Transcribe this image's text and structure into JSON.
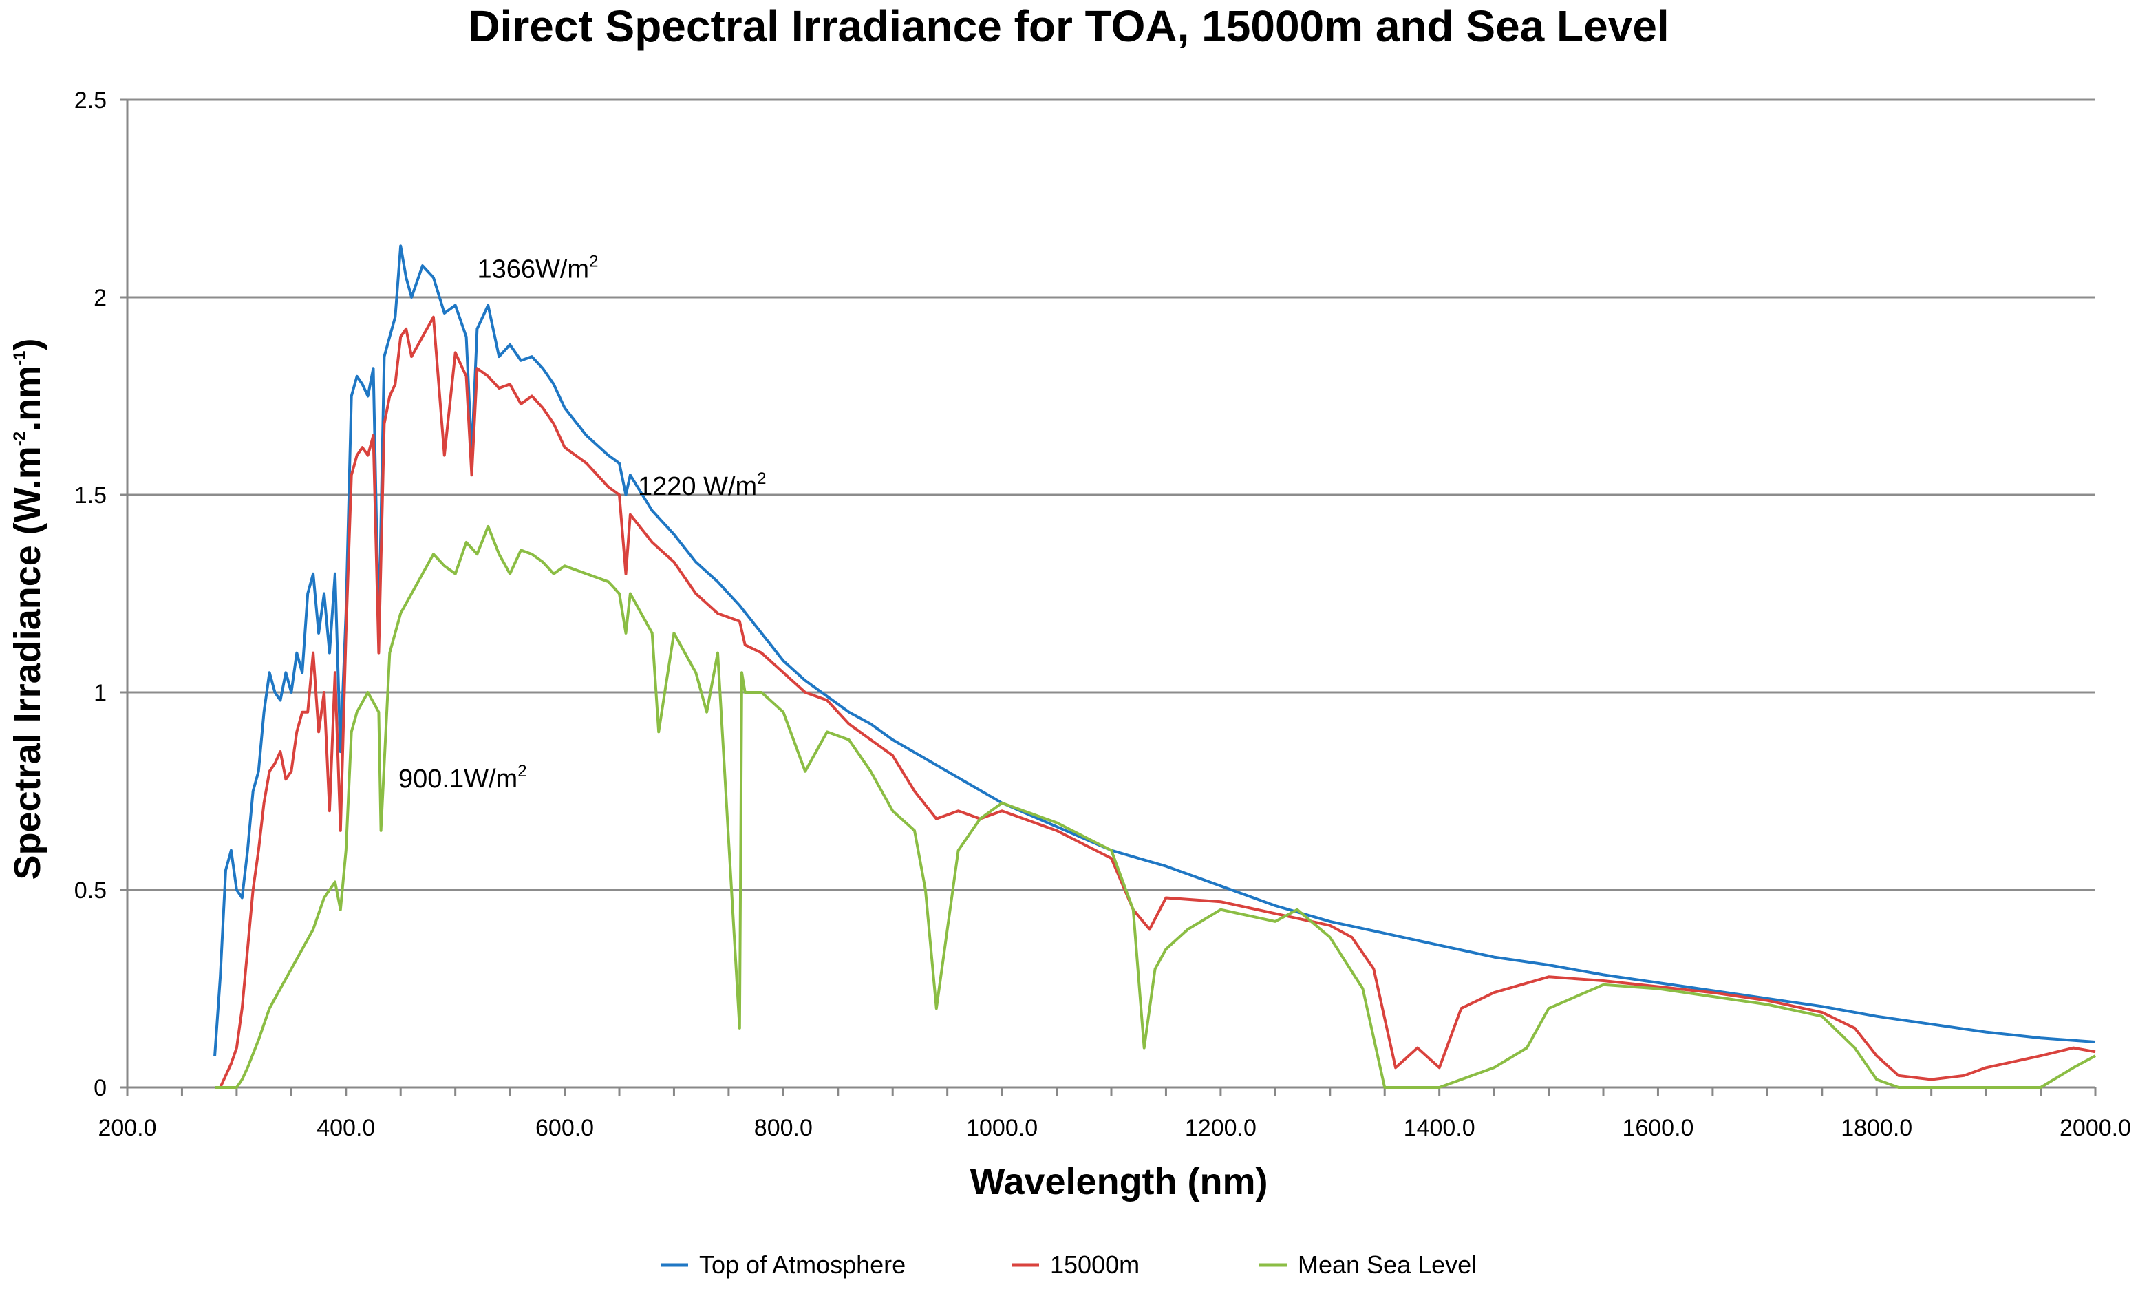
{
  "chart_data": {
    "type": "line",
    "title": "Direct Spectral Irradiance for TOA, 15000m and Sea Level",
    "xlabel": "Wavelength (nm)",
    "ylabel": {
      "base": "Spectral Irradiance (W.m",
      "sup1": "-2",
      "mid": ".nm",
      "sup2": "-1",
      "end": ")"
    },
    "xlim": [
      200,
      2000
    ],
    "ylim": [
      0,
      2.5
    ],
    "x_ticks": [
      "200.0",
      "400.0",
      "600.0",
      "800.0",
      "1000.0",
      "1200.0",
      "1400.0",
      "1600.0",
      "1800.0",
      "2000.0"
    ],
    "x_tick_values": [
      200,
      400,
      600,
      800,
      1000,
      1200,
      1400,
      1600,
      1800,
      2000
    ],
    "y_ticks": [
      "0",
      "0.5",
      "1",
      "1.5",
      "2",
      "2.5"
    ],
    "y_tick_values": [
      0,
      0.5,
      1,
      1.5,
      2,
      2.5
    ],
    "grid": "horizontal",
    "legend_position": "bottom",
    "annotations": [
      {
        "text": "1366W/m",
        "sup": "2",
        "x": 520,
        "y": 2.05
      },
      {
        "text": "1220 W/m",
        "sup": "2",
        "x": 667,
        "y": 1.5
      },
      {
        "text": "900.1W/m",
        "sup": "2",
        "x": 448,
        "y": 0.76
      }
    ],
    "series": [
      {
        "name": "Top of Atmosphere",
        "color": "#1f77c4",
        "x": [
          280,
          285,
          290,
          295,
          300,
          305,
          310,
          315,
          320,
          325,
          330,
          335,
          340,
          345,
          350,
          355,
          360,
          365,
          370,
          375,
          380,
          385,
          390,
          395,
          400,
          405,
          410,
          415,
          420,
          425,
          430,
          435,
          440,
          445,
          450,
          455,
          460,
          470,
          480,
          490,
          500,
          510,
          515,
          520,
          530,
          540,
          550,
          560,
          570,
          580,
          590,
          600,
          620,
          640,
          650,
          656,
          660,
          680,
          700,
          720,
          740,
          760,
          780,
          800,
          820,
          840,
          860,
          880,
          900,
          950,
          1000,
          1050,
          1100,
          1150,
          1200,
          1250,
          1300,
          1350,
          1400,
          1450,
          1500,
          1550,
          1600,
          1650,
          1700,
          1750,
          1800,
          1850,
          1900,
          1950,
          2000
        ],
        "y": [
          0.08,
          0.28,
          0.55,
          0.6,
          0.5,
          0.48,
          0.6,
          0.75,
          0.8,
          0.95,
          1.05,
          1.0,
          0.98,
          1.05,
          1.0,
          1.1,
          1.05,
          1.25,
          1.3,
          1.15,
          1.25,
          1.1,
          1.3,
          0.85,
          1.2,
          1.75,
          1.8,
          1.78,
          1.75,
          1.82,
          1.15,
          1.85,
          1.9,
          1.95,
          2.13,
          2.05,
          2.0,
          2.08,
          2.05,
          1.96,
          1.98,
          1.9,
          1.6,
          1.92,
          1.98,
          1.85,
          1.88,
          1.84,
          1.85,
          1.82,
          1.78,
          1.72,
          1.65,
          1.6,
          1.58,
          1.5,
          1.55,
          1.46,
          1.4,
          1.33,
          1.28,
          1.22,
          1.15,
          1.08,
          1.03,
          0.99,
          0.95,
          0.92,
          0.88,
          0.8,
          0.72,
          0.66,
          0.6,
          0.56,
          0.51,
          0.46,
          0.42,
          0.39,
          0.36,
          0.33,
          0.31,
          0.285,
          0.265,
          0.245,
          0.225,
          0.205,
          0.18,
          0.16,
          0.14,
          0.125,
          0.115
        ]
      },
      {
        "name": "15000m",
        "color": "#d9423d",
        "x": [
          280,
          285,
          290,
          295,
          300,
          305,
          310,
          315,
          320,
          325,
          330,
          335,
          340,
          345,
          350,
          355,
          360,
          365,
          370,
          375,
          380,
          385,
          390,
          395,
          400,
          405,
          410,
          415,
          420,
          425,
          430,
          435,
          440,
          445,
          450,
          455,
          460,
          470,
          480,
          490,
          500,
          510,
          515,
          520,
          530,
          540,
          550,
          560,
          570,
          580,
          590,
          600,
          620,
          640,
          650,
          656,
          660,
          680,
          700,
          720,
          740,
          760,
          765,
          780,
          800,
          820,
          840,
          860,
          880,
          900,
          920,
          940,
          960,
          980,
          1000,
          1050,
          1100,
          1120,
          1135,
          1150,
          1200,
          1250,
          1300,
          1320,
          1340,
          1360,
          1380,
          1400,
          1420,
          1450,
          1500,
          1550,
          1600,
          1650,
          1700,
          1750,
          1780,
          1800,
          1820,
          1850,
          1880,
          1900,
          1950,
          1980,
          2000
        ],
        "y": [
          0.0,
          0.0,
          0.03,
          0.06,
          0.1,
          0.2,
          0.35,
          0.5,
          0.6,
          0.72,
          0.8,
          0.82,
          0.85,
          0.78,
          0.8,
          0.9,
          0.95,
          0.95,
          1.1,
          0.9,
          1.0,
          0.7,
          1.05,
          0.65,
          1.15,
          1.55,
          1.6,
          1.62,
          1.6,
          1.65,
          1.1,
          1.68,
          1.75,
          1.78,
          1.9,
          1.92,
          1.85,
          1.9,
          1.95,
          1.6,
          1.86,
          1.8,
          1.55,
          1.82,
          1.8,
          1.77,
          1.78,
          1.73,
          1.75,
          1.72,
          1.68,
          1.62,
          1.58,
          1.52,
          1.5,
          1.3,
          1.45,
          1.38,
          1.33,
          1.25,
          1.2,
          1.18,
          1.12,
          1.1,
          1.05,
          1.0,
          0.98,
          0.92,
          0.88,
          0.84,
          0.75,
          0.68,
          0.7,
          0.68,
          0.7,
          0.65,
          0.58,
          0.45,
          0.4,
          0.48,
          0.47,
          0.44,
          0.41,
          0.38,
          0.3,
          0.05,
          0.1,
          0.05,
          0.2,
          0.24,
          0.28,
          0.27,
          0.255,
          0.24,
          0.22,
          0.19,
          0.15,
          0.08,
          0.03,
          0.02,
          0.03,
          0.05,
          0.08,
          0.1,
          0.09
        ]
      },
      {
        "name": "Mean Sea Level",
        "color": "#8bbd44",
        "x": [
          280,
          290,
          300,
          305,
          310,
          320,
          330,
          340,
          350,
          360,
          370,
          380,
          390,
          395,
          400,
          405,
          410,
          420,
          430,
          432,
          440,
          450,
          460,
          470,
          480,
          490,
          500,
          510,
          520,
          530,
          540,
          550,
          560,
          570,
          580,
          590,
          600,
          620,
          640,
          650,
          656,
          660,
          680,
          686,
          700,
          720,
          730,
          740,
          760,
          762,
          765,
          780,
          800,
          820,
          840,
          860,
          880,
          900,
          920,
          930,
          940,
          950,
          960,
          980,
          1000,
          1050,
          1100,
          1120,
          1130,
          1140,
          1150,
          1170,
          1200,
          1250,
          1270,
          1300,
          1330,
          1350,
          1380,
          1400,
          1420,
          1450,
          1480,
          1500,
          1550,
          1600,
          1650,
          1700,
          1750,
          1780,
          1800,
          1820,
          1850,
          1900,
          1950,
          1980,
          2000
        ],
        "y": [
          0.0,
          0.0,
          0.0,
          0.02,
          0.05,
          0.12,
          0.2,
          0.25,
          0.3,
          0.35,
          0.4,
          0.48,
          0.52,
          0.45,
          0.6,
          0.9,
          0.95,
          1.0,
          0.95,
          0.65,
          1.1,
          1.2,
          1.25,
          1.3,
          1.35,
          1.32,
          1.3,
          1.38,
          1.35,
          1.42,
          1.35,
          1.3,
          1.36,
          1.35,
          1.33,
          1.3,
          1.32,
          1.3,
          1.28,
          1.25,
          1.15,
          1.25,
          1.15,
          0.9,
          1.15,
          1.05,
          0.95,
          1.1,
          0.15,
          1.05,
          1.0,
          1.0,
          0.95,
          0.8,
          0.9,
          0.88,
          0.8,
          0.7,
          0.65,
          0.5,
          0.2,
          0.4,
          0.6,
          0.68,
          0.72,
          0.67,
          0.6,
          0.45,
          0.1,
          0.3,
          0.35,
          0.4,
          0.45,
          0.42,
          0.45,
          0.38,
          0.25,
          0.0,
          0.0,
          0.0,
          0.02,
          0.05,
          0.1,
          0.2,
          0.26,
          0.25,
          0.23,
          0.21,
          0.18,
          0.1,
          0.02,
          0.0,
          0.0,
          0.0,
          0.0,
          0.05,
          0.08
        ]
      }
    ]
  }
}
